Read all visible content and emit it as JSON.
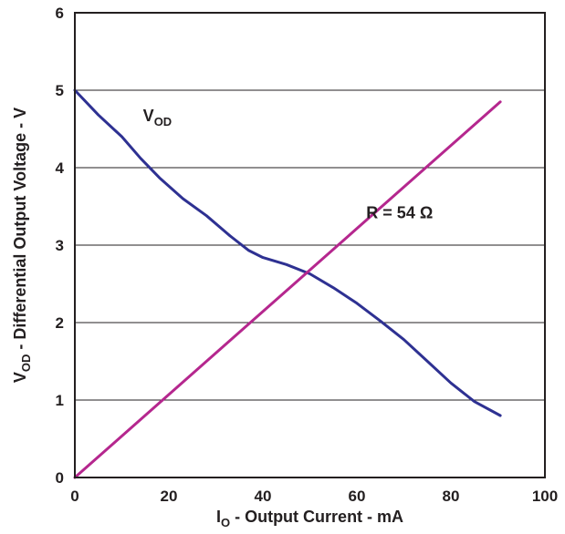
{
  "chart_data": {
    "type": "line",
    "xlabel": {
      "main": "I",
      "sub": "O",
      "rest": " - Output Current - mA"
    },
    "ylabel": {
      "main": "V",
      "sub": "OD",
      "rest": " - Differential Output Voltage - V"
    },
    "xlim": [
      0,
      100
    ],
    "ylim": [
      0,
      6
    ],
    "xticks": [
      0,
      20,
      40,
      60,
      80,
      100
    ],
    "yticks": [
      0,
      1,
      2,
      3,
      4,
      5,
      6
    ],
    "grid": "horizontal",
    "series": [
      {
        "name": "V_OD",
        "color": "#2e3192",
        "x": [
          0,
          5,
          10,
          14,
          18,
          23,
          28,
          33,
          37,
          40,
          45,
          50,
          55,
          60,
          65,
          70,
          75,
          80,
          85,
          90.5
        ],
        "y": [
          5.0,
          4.68,
          4.4,
          4.12,
          3.87,
          3.6,
          3.38,
          3.12,
          2.93,
          2.84,
          2.75,
          2.63,
          2.45,
          2.25,
          2.02,
          1.78,
          1.5,
          1.22,
          0.98,
          0.8
        ]
      },
      {
        "name": "R = 54 Ω",
        "color": "#b5278e",
        "x": [
          0,
          90.5
        ],
        "y": [
          0,
          4.85
        ]
      }
    ],
    "annotations": [
      {
        "id": "vod",
        "main": "V",
        "sub": "OD",
        "x": 14.5,
        "y": 4.6
      },
      {
        "id": "r54",
        "main": "R = 54 Ω",
        "x": 62,
        "y": 3.35
      }
    ]
  }
}
